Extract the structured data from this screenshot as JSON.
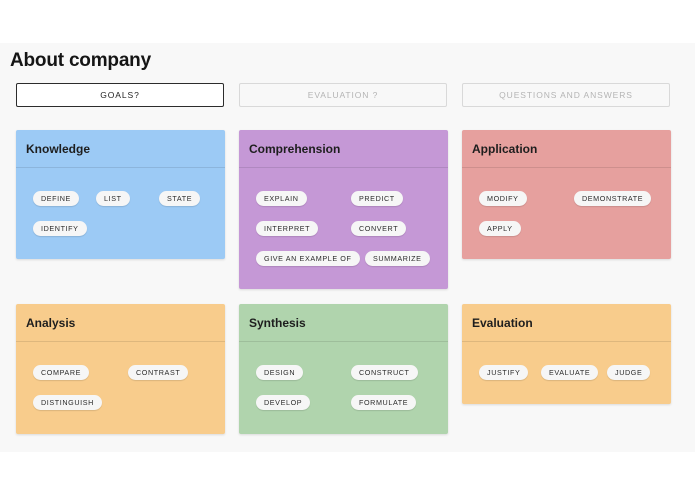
{
  "page": {
    "title": "About company"
  },
  "tabs": [
    {
      "label": "GOALS?",
      "active": true
    },
    {
      "label": "EVALUATION ?",
      "active": false
    },
    {
      "label": "QUESTIONS AND ANSWERS",
      "active": false
    }
  ],
  "cards": [
    {
      "title": "Knowledge",
      "color": "#9ccaf5",
      "chips": [
        "DEFINE",
        "LIST",
        "STATE",
        "IDENTIFY"
      ]
    },
    {
      "title": "Comprehension",
      "color": "#c598d6",
      "chips": [
        "EXPLAIN",
        "PREDICT",
        "INTERPRET",
        "CONVERT",
        "GIVE AN EXAMPLE OF",
        "SUMMARIZE"
      ]
    },
    {
      "title": "Application",
      "color": "#e6a09e",
      "chips": [
        "MODIFY",
        "DEMONSTRATE",
        "APPLY"
      ]
    },
    {
      "title": "Analysis",
      "color": "#f8cc8c",
      "chips": [
        "COMPARE",
        "CONTRAST",
        "DISTINGUISH"
      ]
    },
    {
      "title": "Synthesis",
      "color": "#b0d4ad",
      "chips": [
        "DESIGN",
        "CONSTRUCT",
        "DEVELOP",
        "FORMULATE"
      ]
    },
    {
      "title": "Evaluation",
      "color": "#f8cc8c",
      "chips": [
        "JUSTIFY",
        "EVALUATE",
        "JUDGE"
      ]
    }
  ]
}
